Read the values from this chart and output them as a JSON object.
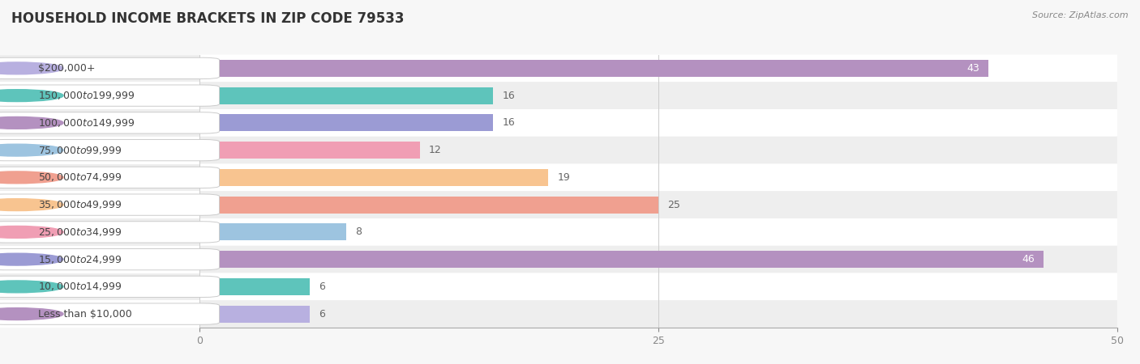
{
  "title": "HOUSEHOLD INCOME BRACKETS IN ZIP CODE 79533",
  "source": "Source: ZipAtlas.com",
  "categories": [
    "Less than $10,000",
    "$10,000 to $14,999",
    "$15,000 to $24,999",
    "$25,000 to $34,999",
    "$35,000 to $49,999",
    "$50,000 to $74,999",
    "$75,000 to $99,999",
    "$100,000 to $149,999",
    "$150,000 to $199,999",
    "$200,000+"
  ],
  "values": [
    43,
    16,
    16,
    12,
    19,
    25,
    8,
    46,
    6,
    6
  ],
  "bar_colors": [
    "#b491c0",
    "#5ec4bb",
    "#9b9bd4",
    "#f09eb4",
    "#f8c490",
    "#f0a090",
    "#9dc4e0",
    "#b491c0",
    "#5ec4bb",
    "#b8b0e0"
  ],
  "background_color": "#f7f7f7",
  "xlim": [
    0,
    50
  ],
  "xticks": [
    0,
    25,
    50
  ],
  "title_fontsize": 12,
  "label_fontsize": 9,
  "value_fontsize": 9,
  "value_threshold": 30,
  "row_even_color": "#ffffff",
  "row_odd_color": "#eeeeee"
}
